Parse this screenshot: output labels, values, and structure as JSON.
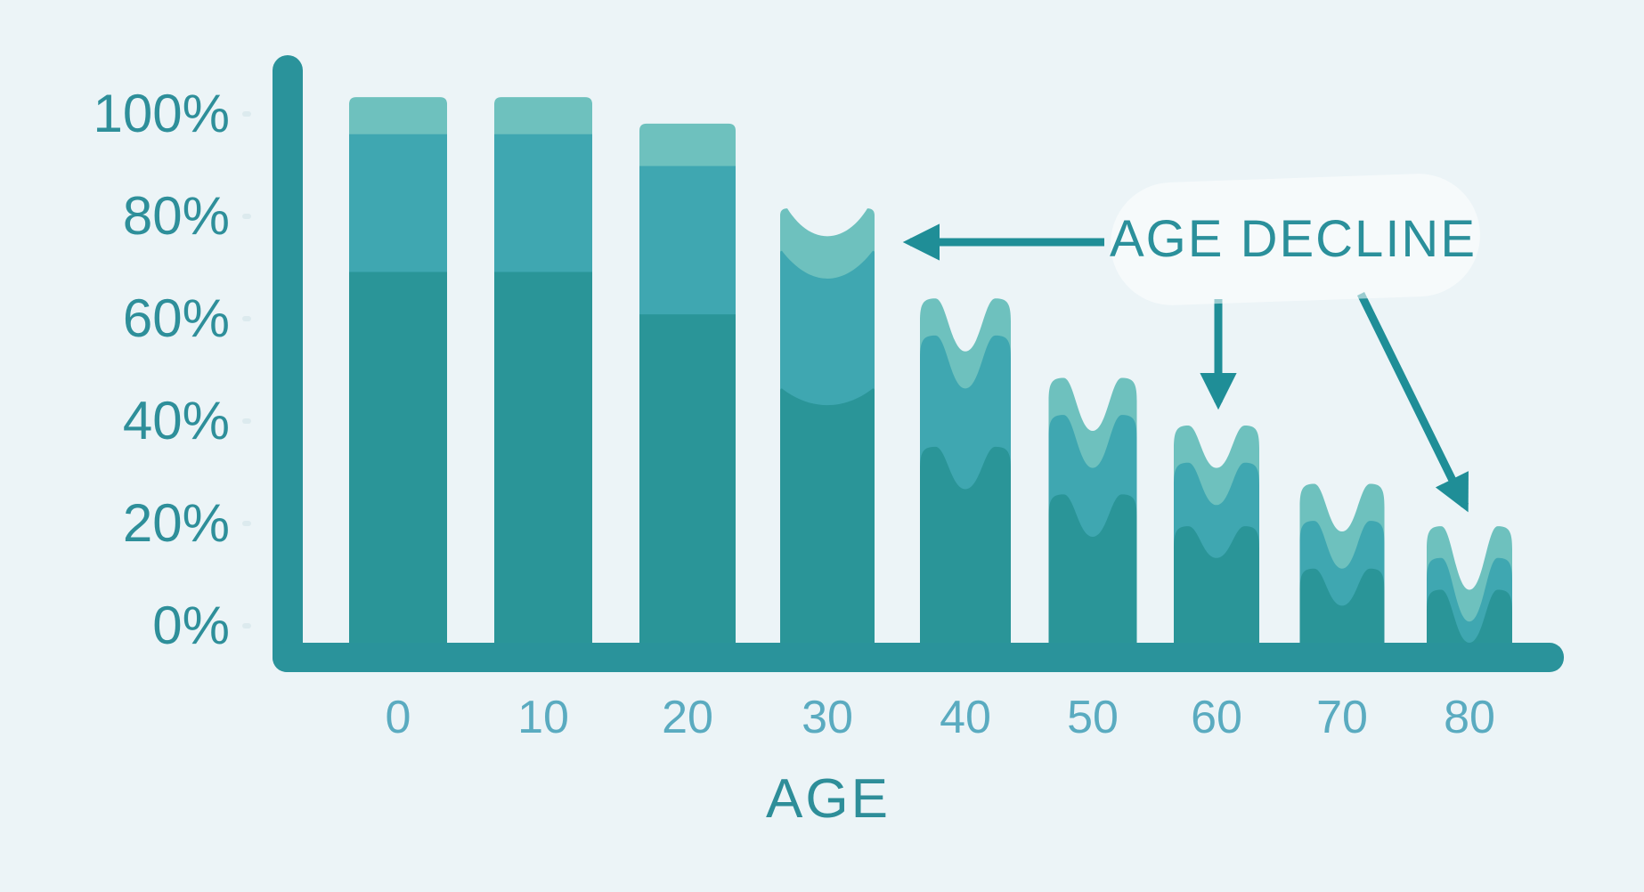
{
  "canvas": {
    "background": "#ecf4f7"
  },
  "colors": {
    "bar_light": "#6ec1be",
    "bar_mid": "#3fa7b1",
    "bar_dark": "#2a9598",
    "axis": "#2a939b",
    "arrow": "#1f8e97",
    "y_label_text": "#2e8f9a",
    "x_label_text": "#5aabc0",
    "axis_title_text": "#2e8e99",
    "annotation_text": "#2b909b",
    "tick": "#dceaee",
    "highlight_blob": "rgba(255,255,255,0.55)"
  },
  "y_axis": {
    "labels": [
      "100%",
      "80%",
      "60%",
      "40%",
      "20%",
      "0%"
    ]
  },
  "x_axis": {
    "title": "AGE"
  },
  "annotation": {
    "label": "AGE DECLINE",
    "arrows": [
      {
        "name": "arrow-left-to-bar-30",
        "points_to_age": "30"
      },
      {
        "name": "arrow-down-to-bar-60",
        "points_to_age": "60"
      },
      {
        "name": "arrow-diagonal-to-bar-80",
        "points_to_age": "80"
      }
    ]
  },
  "chart_data": {
    "type": "bar",
    "title": "AGE DECLINE",
    "xlabel": "AGE",
    "ylabel": "",
    "categories": [
      0,
      10,
      20,
      30,
      40,
      50,
      60,
      70,
      80
    ],
    "x_tick_labels": [
      "0",
      "10",
      "20",
      "30",
      "40",
      "50",
      "60",
      "70",
      "80"
    ],
    "y_tick_labels": [
      "100%",
      "80%",
      "60%",
      "40%",
      "20%",
      "0%"
    ],
    "ylim": [
      0,
      100
    ],
    "grid": false,
    "legend": null,
    "annotation_text": "AGE DECLINE — arrows point at the bars for ages 30, 60 and 80",
    "series": [
      {
        "name": "dark-teal bottom layer",
        "values": [
          70,
          70,
          62,
          48,
          37,
          28,
          22,
          14,
          10
        ]
      },
      {
        "name": "medium-teal middle layer",
        "values": [
          26,
          26,
          28,
          26,
          21,
          15,
          12,
          9,
          6
        ]
      },
      {
        "name": "light-teal top layer",
        "values": [
          7,
          7,
          8,
          8,
          7,
          7,
          7,
          7,
          6
        ]
      }
    ],
    "totals": [
      103,
      103,
      98,
      82,
      65,
      50,
      41,
      30,
      22
    ],
    "bars": [
      {
        "age": "0",
        "shape": "flat",
        "total": 103,
        "mid_top": 96,
        "dark_top": 70,
        "dip": 0
      },
      {
        "age": "10",
        "shape": "flat",
        "total": 103,
        "mid_top": 96,
        "dark_top": 70,
        "dip": 0
      },
      {
        "age": "20",
        "shape": "flat",
        "total": 98,
        "mid_top": 90,
        "dark_top": 62,
        "dip": 0
      },
      {
        "age": "30",
        "shape": "concave",
        "total": 82,
        "mid_top": 74,
        "dark_top": 48,
        "dip": 5
      },
      {
        "age": "40",
        "shape": "wavy",
        "total": 65,
        "mid_top": 58,
        "dark_top": 37,
        "dip": 10
      },
      {
        "age": "50",
        "shape": "wavy",
        "total": 50,
        "mid_top": 43,
        "dark_top": 28,
        "dip": 10
      },
      {
        "age": "60",
        "shape": "wavy",
        "total": 41,
        "mid_top": 34,
        "dark_top": 22,
        "dip": 8
      },
      {
        "age": "70",
        "shape": "wavy",
        "total": 30,
        "mid_top": 23,
        "dark_top": 14,
        "dip": 9
      },
      {
        "age": "80",
        "shape": "wavy",
        "total": 22,
        "mid_top": 16,
        "dark_top": 10,
        "dip": 12
      }
    ]
  }
}
